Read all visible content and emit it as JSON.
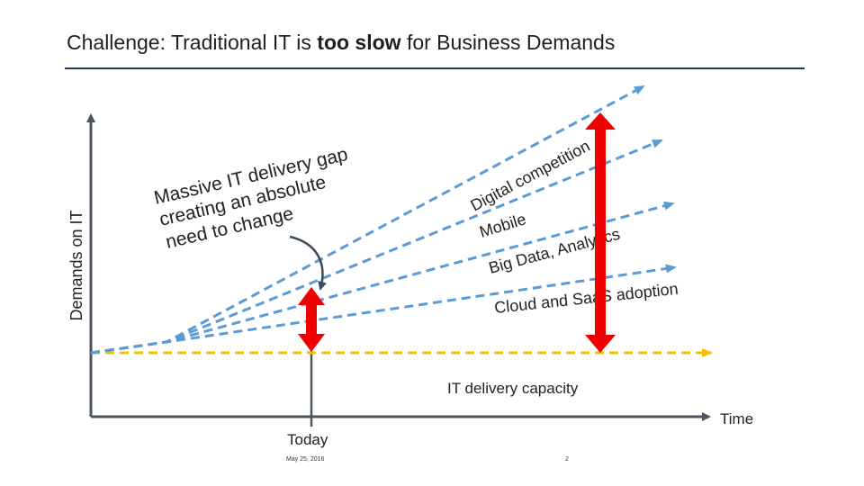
{
  "slide": {
    "title_prefix": "Challenge: Traditional IT is ",
    "title_bold": "too slow",
    "title_suffix": " for Business Demands",
    "footer_date": "May 25, 2016",
    "page_number": "2"
  },
  "diagram": {
    "y_axis_label": "Demands on IT",
    "x_axis_label": "Time",
    "today_label": "Today",
    "gap_callout": [
      "Massive IT delivery gap",
      "creating an absolute",
      "need to change"
    ],
    "trend_lines": [
      {
        "label": "Digital competition"
      },
      {
        "label": "Mobile"
      },
      {
        "label": "Big Data, Analytics"
      },
      {
        "label": "Cloud and SaaS adoption"
      }
    ],
    "capacity_label": "IT delivery capacity",
    "colors": {
      "trend": "#5b9bd5",
      "capacity": "#f2c200",
      "gap_arrow": "#ee0000",
      "axis": "#4a5560"
    }
  }
}
